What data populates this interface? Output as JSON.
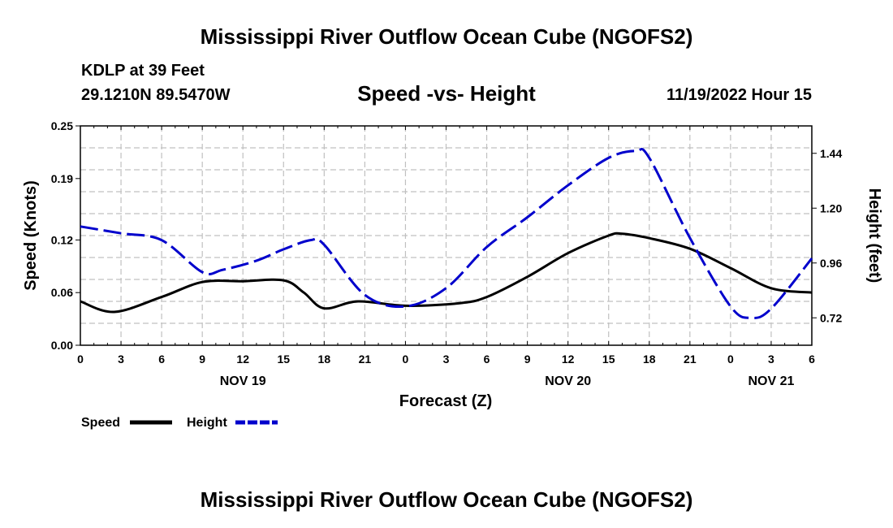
{
  "header": {
    "title": "Mississippi River Outflow Ocean Cube (NGOFS2)",
    "station": "KDLP at 39 Feet",
    "coords": "29.1210N  89.5470W",
    "subtitle": "Speed -vs- Height",
    "datetime": "11/19/2022 Hour 15"
  },
  "footer": {
    "title": "Mississippi River Outflow Ocean Cube (NGOFS2)"
  },
  "colors": {
    "speed": "#000000",
    "height": "#0000cc",
    "grid": "#c0c0c0"
  },
  "chart_data": {
    "type": "line",
    "title": "Speed -vs- Height",
    "xlabel": "Forecast (Z)",
    "ylabel": "Speed (Knots)",
    "y2label": "Height (feet)",
    "x_range_hours": [
      0,
      54
    ],
    "ylim": [
      0.0,
      0.25
    ],
    "y2lim": [
      0.6,
      1.56
    ],
    "x_ticks": [
      {
        "h": 0,
        "label": "0"
      },
      {
        "h": 3,
        "label": "3"
      },
      {
        "h": 6,
        "label": "6"
      },
      {
        "h": 9,
        "label": "9"
      },
      {
        "h": 12,
        "label": "12"
      },
      {
        "h": 15,
        "label": "15"
      },
      {
        "h": 18,
        "label": "18"
      },
      {
        "h": 21,
        "label": "21"
      },
      {
        "h": 24,
        "label": "0"
      },
      {
        "h": 27,
        "label": "3"
      },
      {
        "h": 30,
        "label": "6"
      },
      {
        "h": 33,
        "label": "9"
      },
      {
        "h": 36,
        "label": "12"
      },
      {
        "h": 39,
        "label": "15"
      },
      {
        "h": 42,
        "label": "18"
      },
      {
        "h": 45,
        "label": "21"
      },
      {
        "h": 48,
        "label": "0"
      },
      {
        "h": 51,
        "label": "3"
      },
      {
        "h": 54,
        "label": "6"
      }
    ],
    "date_labels": [
      {
        "h": 12,
        "label": "NOV 19"
      },
      {
        "h": 36,
        "label": "NOV 20"
      },
      {
        "h": 51,
        "label": "NOV 21"
      }
    ],
    "y_ticks": [
      {
        "v": 0.0,
        "label": "0.00"
      },
      {
        "v": 0.06,
        "label": "0.06"
      },
      {
        "v": 0.12,
        "label": "0.12"
      },
      {
        "v": 0.19,
        "label": "0.19"
      },
      {
        "v": 0.25,
        "label": "0.25"
      }
    ],
    "y2_ticks": [
      {
        "v": 0.72,
        "label": "0.72"
      },
      {
        "v": 0.96,
        "label": "0.96"
      },
      {
        "v": 1.2,
        "label": "1.20"
      },
      {
        "v": 1.44,
        "label": "1.44"
      }
    ],
    "series": [
      {
        "name": "Speed",
        "axis": "left",
        "style": "solid",
        "x": [
          0,
          2.5,
          6,
          9,
          12,
          15,
          16.5,
          18,
          20.5,
          24,
          28,
          30,
          33,
          36,
          39,
          40,
          42,
          45,
          48,
          51,
          54
        ],
        "values": [
          0.05,
          0.038,
          0.055,
          0.072,
          0.073,
          0.074,
          0.06,
          0.042,
          0.05,
          0.045,
          0.048,
          0.055,
          0.078,
          0.105,
          0.125,
          0.127,
          0.122,
          0.11,
          0.088,
          0.065,
          0.06
        ]
      },
      {
        "name": "Height",
        "axis": "right",
        "style": "dashed",
        "x": [
          0,
          3,
          6,
          9,
          10.5,
          13,
          15,
          17,
          18,
          21,
          24,
          27,
          30,
          33,
          36,
          39,
          41,
          42,
          45,
          48,
          49.5,
          51,
          54
        ],
        "values": [
          1.12,
          1.09,
          1.06,
          0.92,
          0.93,
          0.97,
          1.02,
          1.06,
          1.04,
          0.82,
          0.77,
          0.85,
          1.03,
          1.16,
          1.3,
          1.42,
          1.45,
          1.42,
          1.07,
          0.77,
          0.72,
          0.76,
          0.98
        ]
      }
    ],
    "legend": [
      {
        "name": "Speed",
        "style": "solid"
      },
      {
        "name": "Height",
        "style": "dashed"
      }
    ],
    "grid": true
  }
}
